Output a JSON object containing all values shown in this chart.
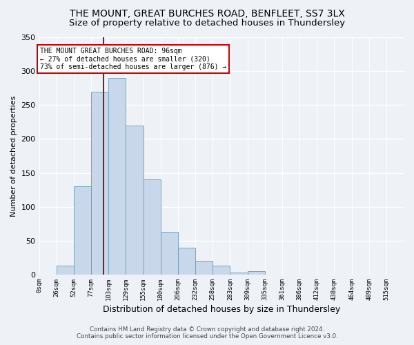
{
  "title": "THE MOUNT, GREAT BURCHES ROAD, BENFLEET, SS7 3LX",
  "subtitle": "Size of property relative to detached houses in Thundersley",
  "xlabel": "Distribution of detached houses by size in Thundersley",
  "ylabel": "Number of detached properties",
  "footer_line1": "Contains HM Land Registry data © Crown copyright and database right 2024.",
  "footer_line2": "Contains public sector information licensed under the Open Government Licence v3.0.",
  "bin_labels": [
    "0sqm",
    "26sqm",
    "52sqm",
    "77sqm",
    "103sqm",
    "129sqm",
    "155sqm",
    "180sqm",
    "206sqm",
    "232sqm",
    "258sqm",
    "283sqm",
    "309sqm",
    "335sqm",
    "361sqm",
    "386sqm",
    "412sqm",
    "438sqm",
    "464sqm",
    "489sqm",
    "515sqm"
  ],
  "bar_heights": [
    0,
    13,
    130,
    270,
    290,
    220,
    140,
    63,
    40,
    20,
    13,
    3,
    5,
    0,
    0,
    0,
    0,
    0,
    0,
    0,
    0
  ],
  "bar_color": "#c8d8ea",
  "bar_edge_color": "#6699bb",
  "vline_color": "#cc0000",
  "annotation_text": "THE MOUNT GREAT BURCHES ROAD: 96sqm\n← 27% of detached houses are smaller (320)\n73% of semi-detached houses are larger (876) →",
  "annotation_box_color": "#ffffff",
  "annotation_box_edge_color": "#cc0000",
  "ylim": [
    0,
    350
  ],
  "yticks": [
    0,
    50,
    100,
    150,
    200,
    250,
    300,
    350
  ],
  "background_color": "#eef2f7",
  "grid_color": "#ffffff",
  "title_fontsize": 10,
  "subtitle_fontsize": 9.5
}
